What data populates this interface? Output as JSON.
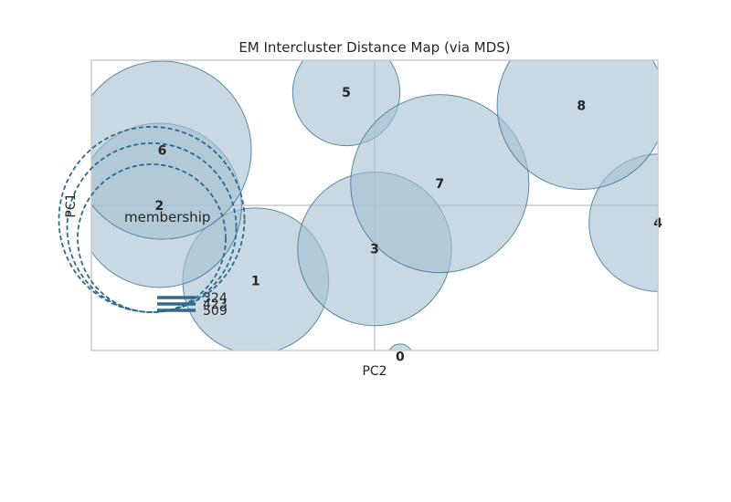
{
  "chart_data": {
    "type": "scatter",
    "title": "EM Intercluster Distance Map (via MDS)",
    "xlabel": "PC2",
    "ylabel": "PC1",
    "xlim": [
      -1,
      1
    ],
    "ylim": [
      -1,
      1
    ],
    "grid": true,
    "bubble_color": "#a3bfd0",
    "edge_color": "#2e6b8e",
    "clusters": [
      {
        "label": "0",
        "x": 0.09,
        "y": -1.04,
        "membership": 9
      },
      {
        "label": "1",
        "x": -0.42,
        "y": -0.52,
        "membership": 315
      },
      {
        "label": "2",
        "x": -0.76,
        "y": 0.0,
        "membership": 400
      },
      {
        "label": "3",
        "x": 0.0,
        "y": -0.3,
        "membership": 350
      },
      {
        "label": "4",
        "x": 1.0,
        "y": -0.12,
        "membership": 280
      },
      {
        "label": "5",
        "x": -0.1,
        "y": 0.78,
        "membership": 170
      },
      {
        "label": "6",
        "x": -0.75,
        "y": 0.38,
        "membership": 470
      },
      {
        "label": "7",
        "x": 0.23,
        "y": 0.15,
        "membership": 470
      },
      {
        "label": "8",
        "x": 0.73,
        "y": 0.69,
        "membership": 420
      }
    ],
    "legend": {
      "title": "membership",
      "placement": "lower-left",
      "values": [
        "324",
        "423",
        "509"
      ]
    }
  }
}
